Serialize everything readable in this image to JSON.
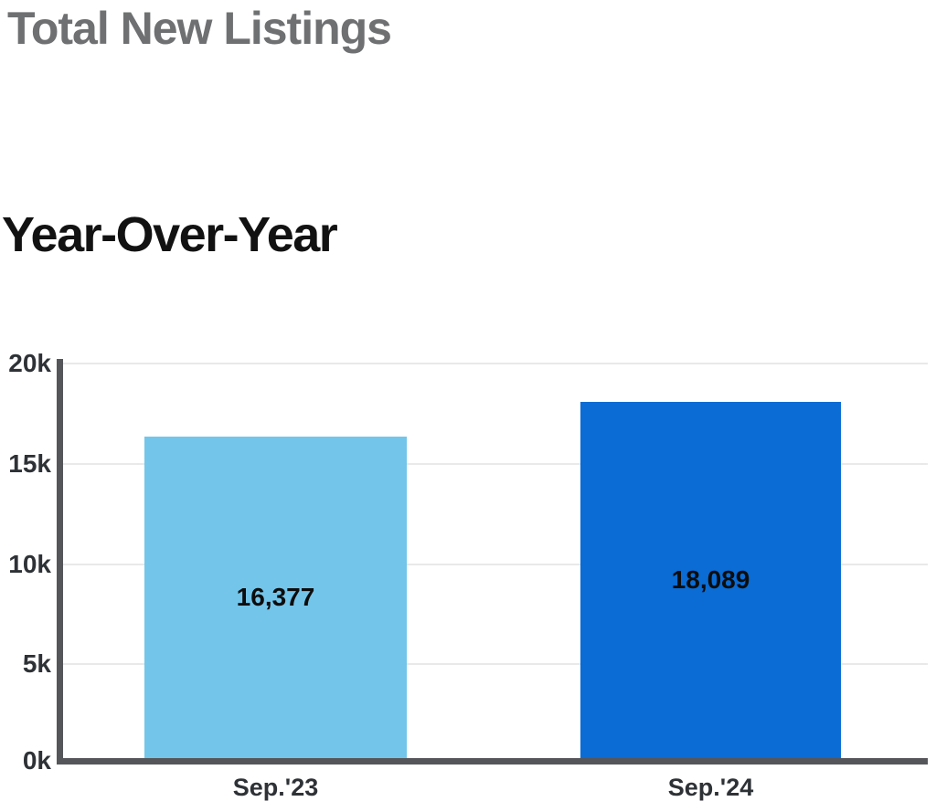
{
  "page": {
    "title": "Total New Listings",
    "subtitle": "Year-Over-Year"
  },
  "chart_data": {
    "type": "bar",
    "title": "Total New Listings",
    "subtitle": "Year-Over-Year",
    "categories": [
      "Sep.'23",
      "Sep.'24"
    ],
    "values": [
      16377,
      18089
    ],
    "value_labels": [
      "16,377",
      "18,089"
    ],
    "bar_colors": [
      "#73C5EA",
      "#0A6CD4"
    ],
    "ylim": [
      0,
      20000
    ],
    "ytick_values": [
      0,
      5000,
      10000,
      15000,
      20000
    ],
    "ytick_labels": [
      "0k",
      "5k",
      "10k",
      "15k",
      "20k"
    ],
    "grid": "horizontal",
    "legend": "none",
    "colors": {
      "axis": "#55565A",
      "gridline": "#E9E9E9",
      "title_text": "#6E7072",
      "subtitle_text": "#121212",
      "bar_label_text": "#0D0D0D",
      "tick_text": "#2E3236"
    }
  }
}
